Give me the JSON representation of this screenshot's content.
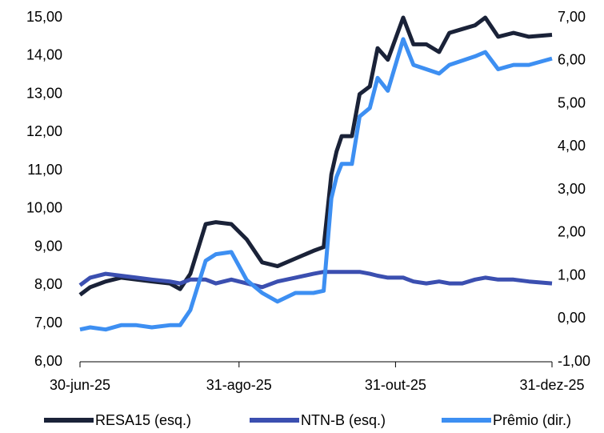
{
  "chart_data": {
    "type": "line",
    "x": [
      "2025-06-30",
      "2025-07-04",
      "2025-07-10",
      "2025-07-16",
      "2025-07-22",
      "2025-07-28",
      "2025-08-04",
      "2025-08-08",
      "2025-08-12",
      "2025-08-18",
      "2025-08-22",
      "2025-08-28",
      "2025-09-03",
      "2025-09-09",
      "2025-09-15",
      "2025-09-22",
      "2025-09-29",
      "2025-10-03",
      "2025-10-06",
      "2025-10-08",
      "2025-10-10",
      "2025-10-14",
      "2025-10-17",
      "2025-10-21",
      "2025-10-24",
      "2025-10-28",
      "2025-11-03",
      "2025-11-07",
      "2025-11-12",
      "2025-11-17",
      "2025-11-21",
      "2025-11-26",
      "2025-12-01",
      "2025-12-05",
      "2025-12-10",
      "2025-12-16",
      "2025-12-22",
      "2025-12-31"
    ],
    "series": [
      {
        "name": "RESA15 (esq.)",
        "color": "#1a2238",
        "axis": "y",
        "values": [
          7.75,
          7.95,
          8.1,
          8.2,
          8.15,
          8.1,
          8.05,
          7.9,
          8.3,
          9.6,
          9.65,
          9.6,
          9.2,
          8.6,
          8.5,
          8.7,
          8.9,
          9.0,
          10.9,
          11.5,
          11.9,
          11.9,
          13.0,
          13.2,
          14.2,
          13.9,
          15.0,
          14.3,
          14.3,
          14.1,
          14.6,
          14.7,
          14.8,
          15.0,
          14.5,
          14.6,
          14.5,
          14.55
        ]
      },
      {
        "name": "NTN-B (esq.)",
        "color": "#3b4fb0",
        "axis": "y",
        "values": [
          8.0,
          8.2,
          8.3,
          8.25,
          8.2,
          8.15,
          8.1,
          8.05,
          8.15,
          8.15,
          8.05,
          8.15,
          8.05,
          7.95,
          8.1,
          8.2,
          8.3,
          8.35,
          8.35,
          8.35,
          8.35,
          8.35,
          8.35,
          8.3,
          8.25,
          8.2,
          8.2,
          8.1,
          8.05,
          8.1,
          8.05,
          8.05,
          8.15,
          8.2,
          8.15,
          8.15,
          8.1,
          8.05
        ]
      },
      {
        "name": "Prêmio (dir.)",
        "color": "#3d8ff2",
        "axis": "y2",
        "values": [
          -0.25,
          -0.2,
          -0.25,
          -0.15,
          -0.15,
          -0.2,
          -0.15,
          -0.15,
          0.2,
          1.35,
          1.5,
          1.55,
          0.9,
          0.6,
          0.4,
          0.6,
          0.6,
          0.65,
          2.8,
          3.3,
          3.6,
          3.6,
          4.7,
          4.9,
          5.6,
          5.3,
          6.5,
          5.9,
          5.8,
          5.7,
          5.9,
          6.0,
          6.1,
          6.2,
          5.8,
          5.9,
          5.9,
          6.05
        ]
      }
    ],
    "xlim": [
      "2025-06-30",
      "2025-12-31"
    ],
    "xticks": [
      {
        "value": "2025-06-30",
        "label": "30-jun-25"
      },
      {
        "value": "2025-08-31",
        "label": "31-ago-25"
      },
      {
        "value": "2025-10-31",
        "label": "31-out-25"
      },
      {
        "value": "2025-12-31",
        "label": "31-dez-25"
      }
    ],
    "ylim": [
      6,
      15
    ],
    "yticks": [
      {
        "value": 6,
        "label": "6,00"
      },
      {
        "value": 7,
        "label": "7,00"
      },
      {
        "value": 8,
        "label": "8,00"
      },
      {
        "value": 9,
        "label": "9,00"
      },
      {
        "value": 10,
        "label": "10,00"
      },
      {
        "value": 11,
        "label": "11,00"
      },
      {
        "value": 12,
        "label": "12,00"
      },
      {
        "value": 13,
        "label": "13,00"
      },
      {
        "value": 14,
        "label": "14,00"
      },
      {
        "value": 15,
        "label": "15,00"
      }
    ],
    "y2lim": [
      -1,
      7
    ],
    "y2ticks": [
      {
        "value": -1,
        "label": "-1,00"
      },
      {
        "value": 0,
        "label": "0,00"
      },
      {
        "value": 1,
        "label": "1,00"
      },
      {
        "value": 2,
        "label": "2,00"
      },
      {
        "value": 3,
        "label": "3,00"
      },
      {
        "value": 4,
        "label": "4,00"
      },
      {
        "value": 5,
        "label": "5,00"
      },
      {
        "value": 6,
        "label": "6,00"
      },
      {
        "value": 7,
        "label": "7,00"
      }
    ],
    "legend": "bottom"
  }
}
